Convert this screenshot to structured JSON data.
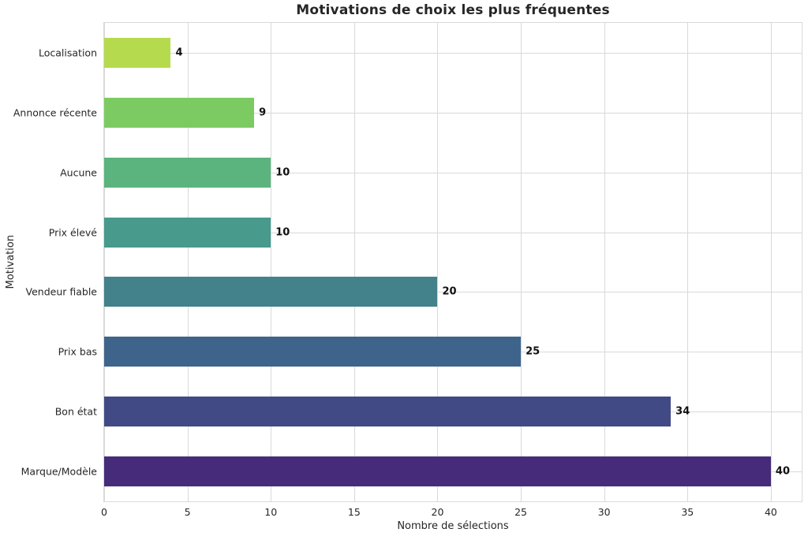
{
  "chart_data": {
    "type": "bar",
    "orientation": "horizontal",
    "title": "Motivations de choix les plus fréquentes",
    "xlabel": "Nombre de sélections",
    "ylabel": "Motivation",
    "categories": [
      "Localisation",
      "Annonce récente",
      "Aucune",
      "Prix élevé",
      "Vendeur fiable",
      "Prix bas",
      "Bon état",
      "Marque/Modèle"
    ],
    "values": [
      4,
      9,
      10,
      10,
      20,
      25,
      34,
      40
    ],
    "bar_colors": [
      "#b6da4e",
      "#7ccb62",
      "#5bb47d",
      "#479a8c",
      "#43818b",
      "#3f648b",
      "#424a86",
      "#452b7a"
    ],
    "x_ticks": [
      0,
      5,
      10,
      15,
      20,
      25,
      30,
      35,
      40
    ],
    "xlim": [
      0,
      41.85
    ],
    "grid": true,
    "grid_color": "#d9d9d9",
    "background_color": "#ffffff",
    "text_color": "#262626",
    "value_label_color": "#111111",
    "legend": "none"
  }
}
